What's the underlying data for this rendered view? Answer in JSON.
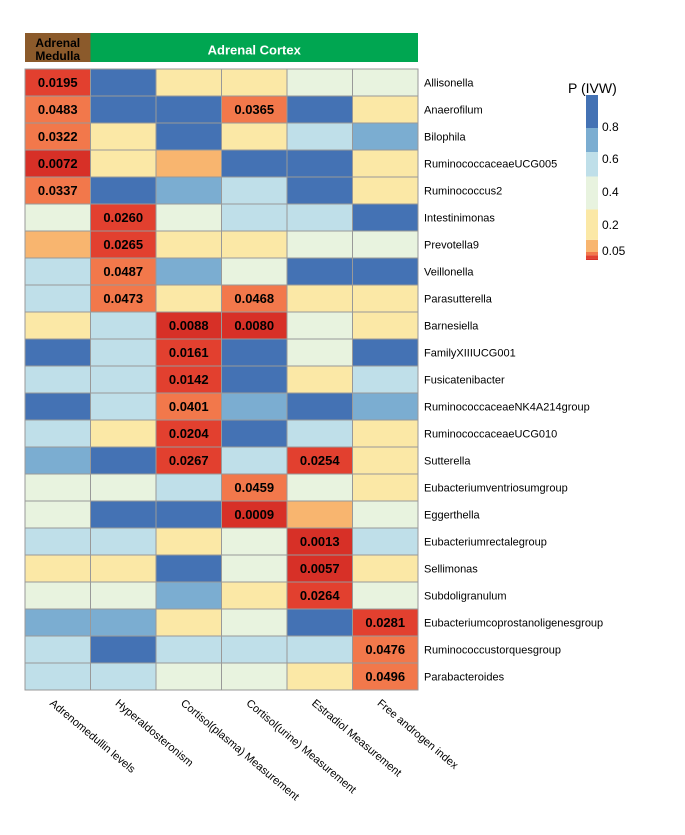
{
  "chart_data": {
    "type": "heatmap",
    "title": "",
    "groups": [
      {
        "name": "Adrenal Medulla",
        "lines": [
          "Adrenal",
          "Medulla"
        ],
        "color": "#8B5A2B",
        "columns": 1
      },
      {
        "name": "Adrenal Cortex",
        "lines": [
          "Adrenal Cortex"
        ],
        "color": "#00A651",
        "columns": 5
      }
    ],
    "columns": [
      "Adrenomedullin levels",
      "Hyperaldosteronism",
      "Cortisol(plasma) Measurement",
      "Cortisol(urine) Measurement",
      "Estradiol Measurement",
      "Free androgen index"
    ],
    "rows": [
      "Allisonella",
      "Anaerofilum",
      "Bilophila",
      "RuminococcaceaeUCG005",
      "Ruminococcus2",
      "Intestinimonas",
      "Prevotella9",
      "Veillonella",
      "Parasutterella",
      "Barnesiella",
      "FamilyXIIIUCG001",
      "Fusicatenibacter",
      "RuminococcaceaeNK4A214group",
      "RuminococcaceaeUCG010",
      "Sutterella",
      "Eubacteriumventriosumgroup",
      "Eggerthella",
      "Eubacteriumrectalegroup",
      "Sellimonas",
      "Subdoligranulum",
      "Eubacteriumcoprostanoligenesgroup",
      "Ruminococcustorquesgroup",
      "Parabacteroides"
    ],
    "values": [
      [
        0.0195,
        0.9,
        0.2,
        0.2,
        0.4,
        0.4
      ],
      [
        0.0483,
        0.9,
        0.9,
        0.0365,
        0.9,
        0.2
      ],
      [
        0.0322,
        0.2,
        0.9,
        0.2,
        0.6,
        0.7
      ],
      [
        0.0072,
        0.2,
        0.1,
        0.9,
        0.9,
        0.2
      ],
      [
        0.0337,
        0.9,
        0.7,
        0.6,
        0.9,
        0.2
      ],
      [
        0.4,
        0.026,
        0.4,
        0.6,
        0.6,
        0.9
      ],
      [
        0.1,
        0.0265,
        0.2,
        0.2,
        0.4,
        0.4
      ],
      [
        0.6,
        0.0487,
        0.7,
        0.4,
        0.9,
        0.9
      ],
      [
        0.6,
        0.0473,
        0.2,
        0.0468,
        0.2,
        0.2
      ],
      [
        0.2,
        0.6,
        0.0088,
        0.008,
        0.4,
        0.2
      ],
      [
        0.9,
        0.6,
        0.0161,
        0.9,
        0.4,
        0.9
      ],
      [
        0.6,
        0.6,
        0.0142,
        0.9,
        0.2,
        0.6
      ],
      [
        0.9,
        0.6,
        0.0401,
        0.7,
        0.9,
        0.7
      ],
      [
        0.6,
        0.2,
        0.0204,
        0.9,
        0.6,
        0.2
      ],
      [
        0.7,
        0.9,
        0.0267,
        0.6,
        0.0254,
        0.2
      ],
      [
        0.4,
        0.4,
        0.6,
        0.0459,
        0.4,
        0.2
      ],
      [
        0.4,
        0.9,
        0.9,
        0.0009,
        0.1,
        0.4
      ],
      [
        0.6,
        0.6,
        0.2,
        0.4,
        0.0013,
        0.6
      ],
      [
        0.2,
        0.2,
        0.9,
        0.4,
        0.0057,
        0.2
      ],
      [
        0.4,
        0.4,
        0.7,
        0.2,
        0.0264,
        0.4
      ],
      [
        0.7,
        0.7,
        0.2,
        0.4,
        0.9,
        0.0281
      ],
      [
        0.6,
        0.9,
        0.6,
        0.6,
        0.6,
        0.0476
      ],
      [
        0.6,
        0.6,
        0.4,
        0.4,
        0.2,
        0.0496
      ]
    ],
    "label_threshold": 0.05,
    "cell_labels": {
      "0,0": "0.0195",
      "1,0": "0.0483",
      "1,3": "0.0365",
      "2,0": "0.0322",
      "3,0": "0.0072",
      "4,0": "0.0337",
      "5,1": "0.0260",
      "6,1": "0.0265",
      "7,1": "0.0487",
      "8,1": "0.0473",
      "8,3": "0.0468",
      "9,2": "0.0088",
      "9,3": "0.0080",
      "10,2": "0.0161",
      "11,2": "0.0142",
      "12,2": "0.0401",
      "13,2": "0.0204",
      "14,2": "0.0267",
      "14,4": "0.0254",
      "15,3": "0.0459",
      "16,3": "0.0009",
      "17,4": "0.0013",
      "18,4": "0.0057",
      "19,4": "0.0264",
      "20,5": "0.0281",
      "21,5": "0.0476",
      "22,5": "0.0496"
    },
    "legend": {
      "title": "P (IVW)",
      "ticks": [
        "0.8",
        "0.6",
        "0.4",
        "0.2",
        "0.05"
      ],
      "scale": [
        {
          "max": 0.01,
          "color": "#D73027"
        },
        {
          "max": 0.03,
          "color": "#E2402F"
        },
        {
          "max": 0.05,
          "color": "#F2784B"
        },
        {
          "max": 0.12,
          "color": "#F8B56F"
        },
        {
          "max": 0.3,
          "color": "#FBE8A6"
        },
        {
          "max": 0.5,
          "color": "#E8F3DF"
        },
        {
          "max": 0.65,
          "color": "#BFDFE9"
        },
        {
          "max": 0.8,
          "color": "#7BADD1"
        },
        {
          "max": 1.0,
          "color": "#4472B4"
        }
      ]
    },
    "colors": {
      "grid_line": "#999999",
      "header_text": "#ffffff",
      "medulla_text": "#000000"
    }
  }
}
